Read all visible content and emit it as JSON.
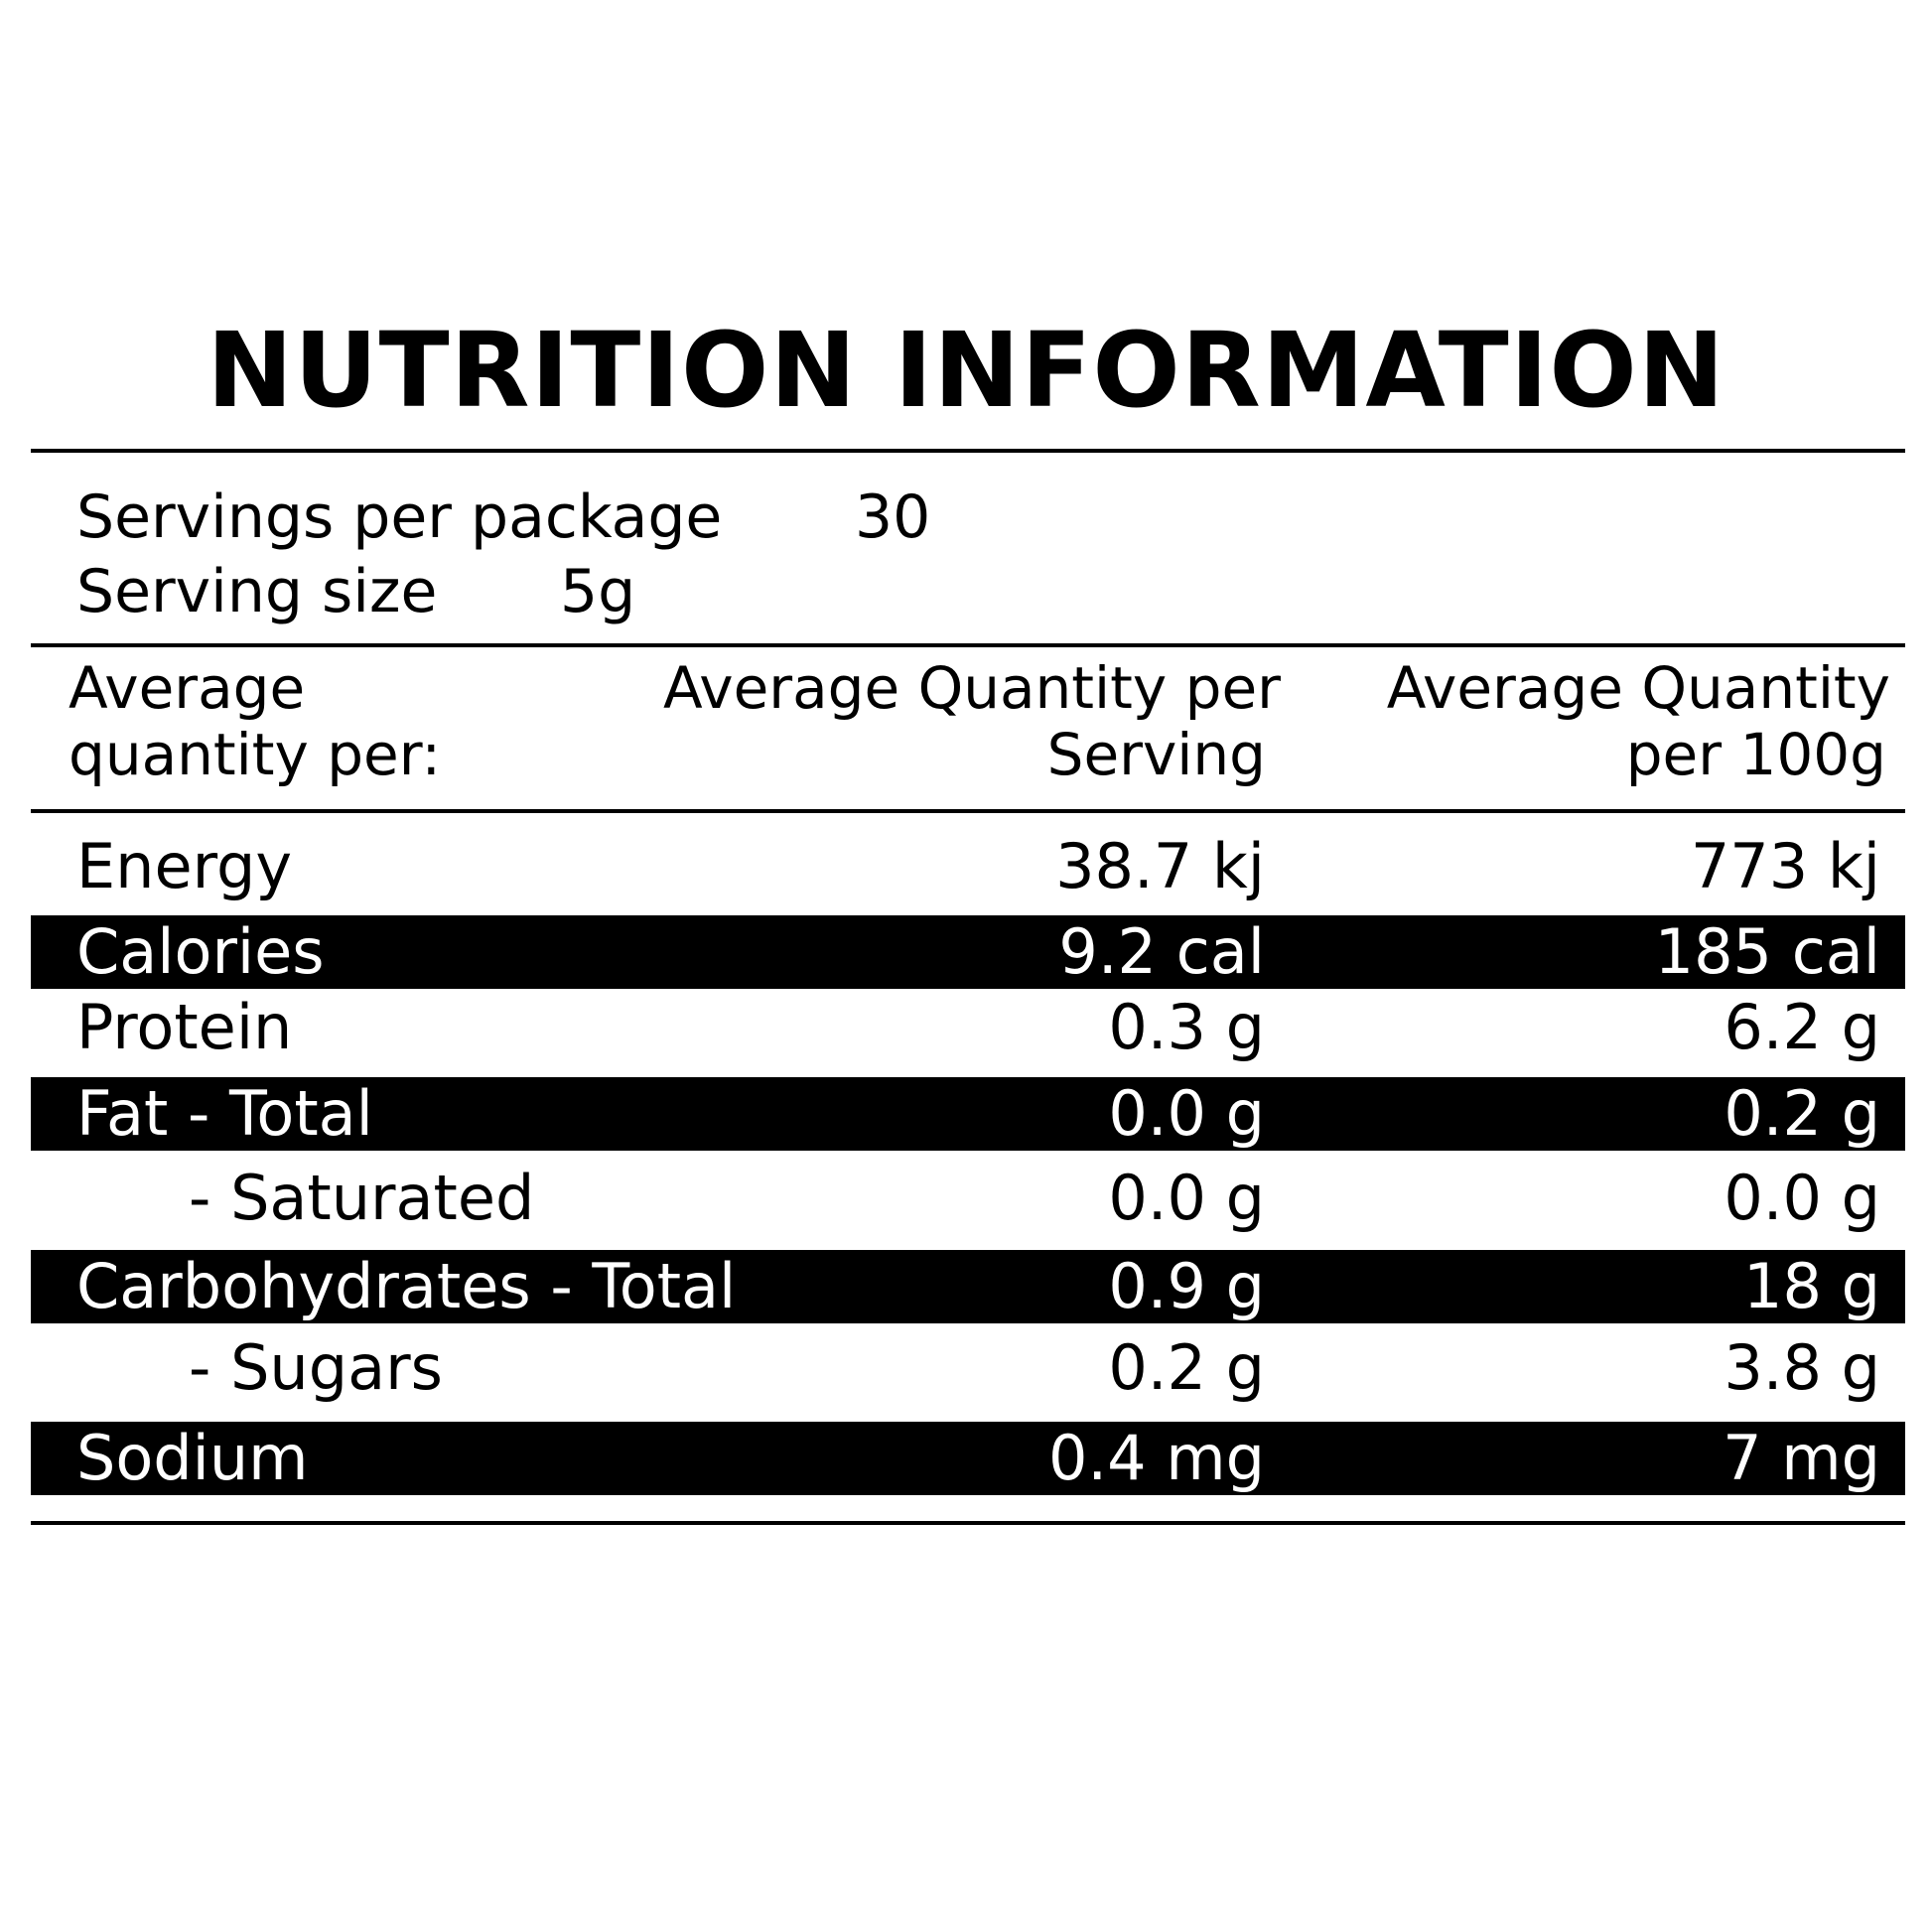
{
  "title": "NUTRITION INFORMATION",
  "servings": {
    "per_package_label": "Servings per package",
    "per_package_value": "30",
    "size_label": "Serving size",
    "size_value": "5g"
  },
  "header": {
    "col1": [
      "Average",
      "quantity per:"
    ],
    "col2": [
      "Average Quantity per",
      "Serving"
    ],
    "col3": [
      "Average Quantity",
      "per 100g"
    ]
  },
  "rows": [
    {
      "label": "Energy",
      "serving": "38.7 kj",
      "per100g": "773 kj",
      "highlight": false
    },
    {
      "label": "Calories",
      "serving": "9.2 cal",
      "per100g": "185 cal",
      "highlight": true
    },
    {
      "label": "Protein",
      "serving": "0.3 g",
      "per100g": "6.2 g",
      "highlight": false
    },
    {
      "label": "Fat - Total",
      "serving": "0.0 g",
      "per100g": "0.2 g",
      "highlight": true
    },
    {
      "label": "- Saturated",
      "serving": "0.0 g",
      "per100g": "0.0 g",
      "highlight": false
    },
    {
      "label": "Carbohydrates - Total",
      "serving": "0.9 g",
      "per100g": "18 g",
      "highlight": true
    },
    {
      "label": "- Sugars",
      "serving": "0.2 g",
      "per100g": "3.8 g",
      "highlight": false
    },
    {
      "label": "Sodium",
      "serving": "0.4 mg",
      "per100g": "7 mg",
      "highlight": true
    }
  ],
  "colors": {
    "ink": "#000000",
    "background": "#ffffff"
  }
}
